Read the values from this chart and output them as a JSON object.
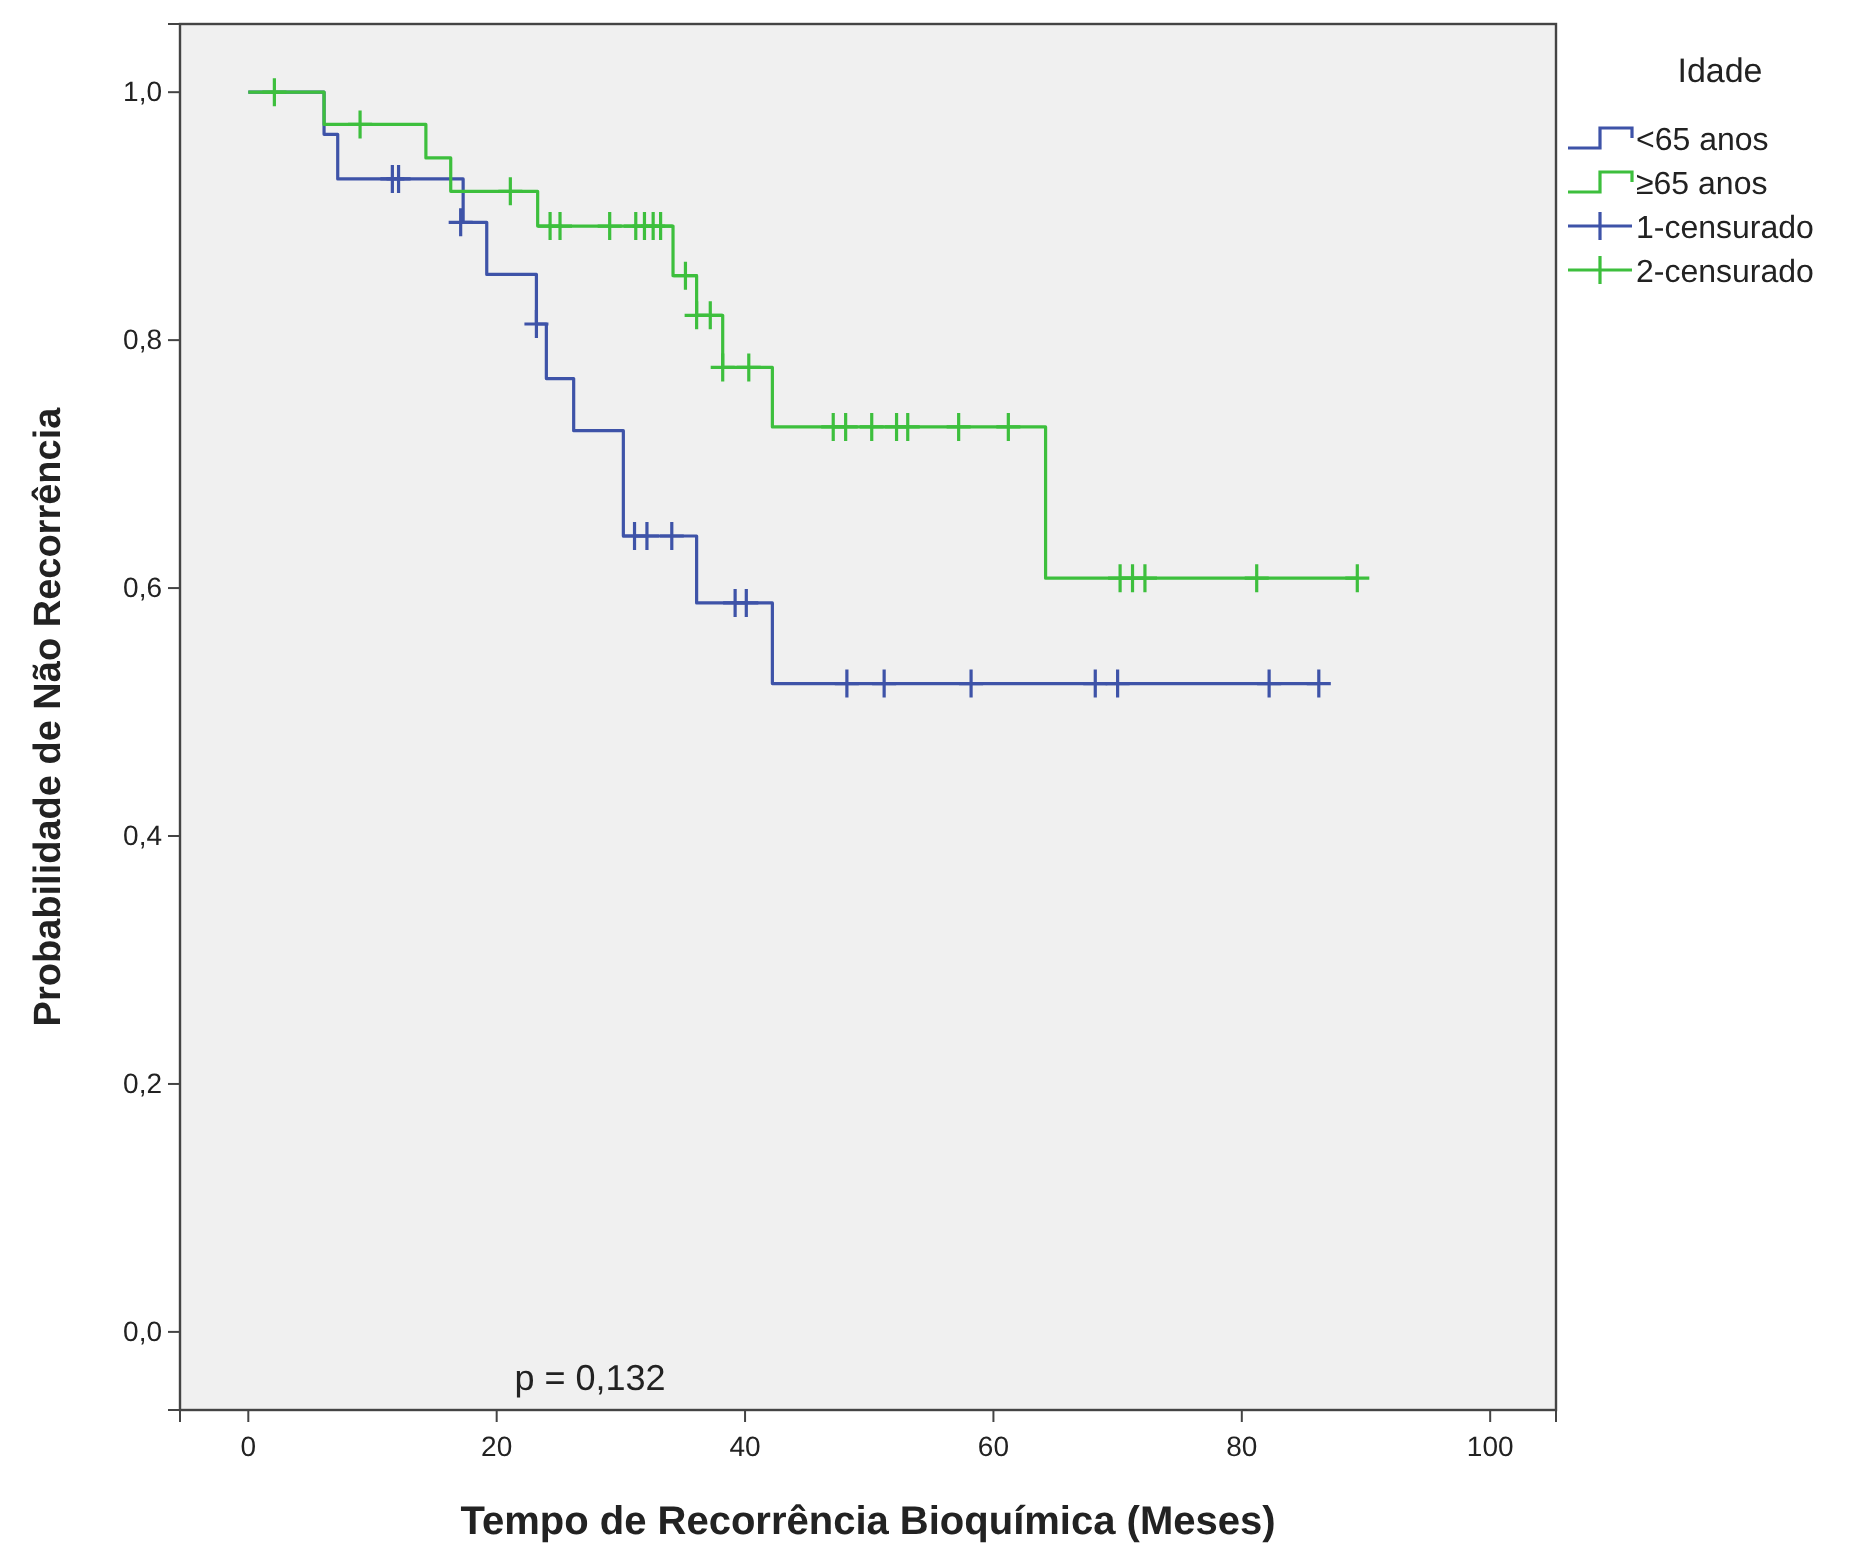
{
  "chart_data": {
    "type": "step",
    "xlabel": "Tempo de Recorrência Bioquímica (Meses)",
    "ylabel": "Probabilidade de Não Recorrência",
    "legend_title": "Idade",
    "legend": "top right",
    "grid": false,
    "xlim": [
      -5.5,
      105.3
    ],
    "ylim": [
      -0.063,
      1.055
    ],
    "xticks": [
      0,
      20,
      40,
      60,
      80,
      100
    ],
    "yticks": [
      {
        "value": 0,
        "label": "0,0"
      },
      {
        "value": 0.2,
        "label": "0,2"
      },
      {
        "value": 0.4,
        "label": "0,4"
      },
      {
        "value": 0.6,
        "label": "0,6"
      },
      {
        "value": 0.8,
        "label": "0,8"
      },
      {
        "value": 1,
        "label": "1,0"
      }
    ],
    "annotations": [
      "p = 0,132"
    ],
    "series": [
      {
        "name": "<65 anos",
        "color": "#3e53a8",
        "x": [
          0,
          6.1,
          7.2,
          17.3,
          19.2,
          23.2,
          24.0,
          26.2,
          30.2,
          36.1,
          42.2,
          86.2
        ],
        "values": [
          1,
          0.966,
          0.93,
          0.895,
          0.853,
          0.813,
          0.769,
          0.727,
          0.642,
          0.588,
          0.523,
          0.523
        ]
      },
      {
        "name": "≥65 anos",
        "color": "#3dbf3d",
        "x": [
          0,
          6.1,
          14.3,
          16.3,
          23.3,
          34.2,
          36.1,
          38.2,
          42.2,
          64.2,
          89.3
        ],
        "values": [
          1,
          0.974,
          0.947,
          0.92,
          0.892,
          0.852,
          0.82,
          0.778,
          0.73,
          0.608,
          0.608
        ]
      },
      {
        "name": "1-censurado",
        "type": "scatter",
        "marker": "cross",
        "color": "#3e53a8",
        "x": [
          11.6,
          12.1,
          17.1,
          23.2,
          31.1,
          32.1,
          34.1,
          39.2,
          40.1,
          48.2,
          51.2,
          58.2,
          68.2,
          70.0,
          82.2,
          86.2
        ],
        "values": [
          0.93,
          0.93,
          0.895,
          0.813,
          0.642,
          0.642,
          0.642,
          0.588,
          0.588,
          0.523,
          0.523,
          0.523,
          0.523,
          0.523,
          0.523,
          0.523
        ]
      },
      {
        "name": "2-censurado",
        "type": "scatter",
        "marker": "cross",
        "color": "#3dbf3d",
        "x": [
          2.1,
          9.0,
          21.1,
          24.3,
          25.1,
          29.1,
          31.2,
          31.9,
          32.6,
          33.2,
          35.2,
          36.1,
          37.2,
          38.2,
          40.3,
          47.1,
          48.1,
          50.2,
          52.2,
          53.1,
          57.2,
          61.2,
          70.2,
          71.2,
          72.2,
          81.2,
          89.3
        ],
        "values": [
          1,
          0.974,
          0.92,
          0.892,
          0.892,
          0.892,
          0.892,
          0.892,
          0.892,
          0.892,
          0.852,
          0.82,
          0.82,
          0.778,
          0.778,
          0.73,
          0.73,
          0.73,
          0.73,
          0.73,
          0.73,
          0.73,
          0.608,
          0.608,
          0.608,
          0.608,
          0.608
        ]
      }
    ]
  }
}
